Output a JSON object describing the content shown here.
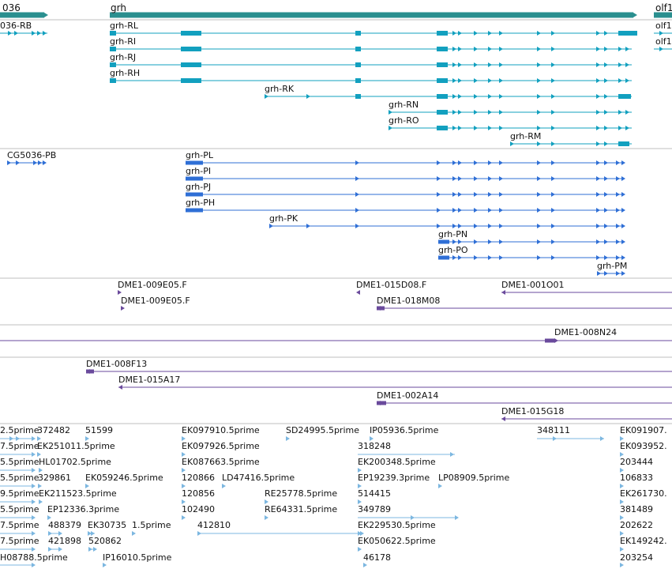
{
  "colors": {
    "gene": "#2a8f8f",
    "transcript": "#12a0bf",
    "cds": "#2f6fd6",
    "clone": "#6a4a9c",
    "est": "#7cb7e0",
    "divider": "#bfbfbf"
  },
  "genes": {
    "left_partial": "036",
    "main": "grh",
    "right_partial": "olf1"
  },
  "transcripts": [
    "036-RB",
    "grh-RL",
    "grh-RI",
    "grh-RJ",
    "grh-RH",
    "grh-RK",
    "grh-RN",
    "grh-RO",
    "grh-RM",
    "olf1",
    "olf1"
  ],
  "cds_models": [
    "CG5036-PB",
    "grh-PL",
    "grh-PI",
    "grh-PJ",
    "grh-PH",
    "grh-PK",
    "grh-PN",
    "grh-PO",
    "grh-PM"
  ],
  "clones": [
    "DME1-009E05.F",
    "DME1-009E05.F",
    "DME1-015D08.F",
    "DME1-018M08",
    "DME1-001O01",
    "DME1-008N24",
    "DME1-008F13",
    "DME1-015A17",
    "DME1-002A14",
    "DME1-015G18"
  ],
  "ests": [
    "2.5prime",
    "372482",
    "51599",
    "EK097910.5prime",
    "SD24995.5prime",
    "IP05936.5prime",
    "348111",
    "EK091907.",
    "7.5prime",
    "EK251011.5prime",
    "EK097926.5prime",
    "318248",
    "EK093952.",
    "5.5prime",
    "HL01702.5prime",
    "EK087663.5prime",
    "EK200348.5prime",
    "203444",
    "5.5prime",
    "329861",
    "EK059246.5prime",
    "120866",
    "LD47416.5prime",
    "EP19239.3prime",
    "LP08909.5prime",
    "106833",
    "9.5prime",
    "EK211523.5prime",
    "120856",
    "RE25778.5prime",
    "514415",
    "EK261730.",
    "5.5prime",
    "EP12336.3prime",
    "102490",
    "RE64331.5prime",
    "349789",
    "381489",
    "7.5prime",
    "488379",
    "EK30735",
    "1.5prime",
    "412810",
    "EK229530.5prime",
    "202622",
    "7.5prime",
    "421898",
    "520862",
    "EK050622.5prime",
    "EK149242.",
    "H08788.5prime",
    "IP16010.5prime",
    "46178",
    "203254"
  ]
}
